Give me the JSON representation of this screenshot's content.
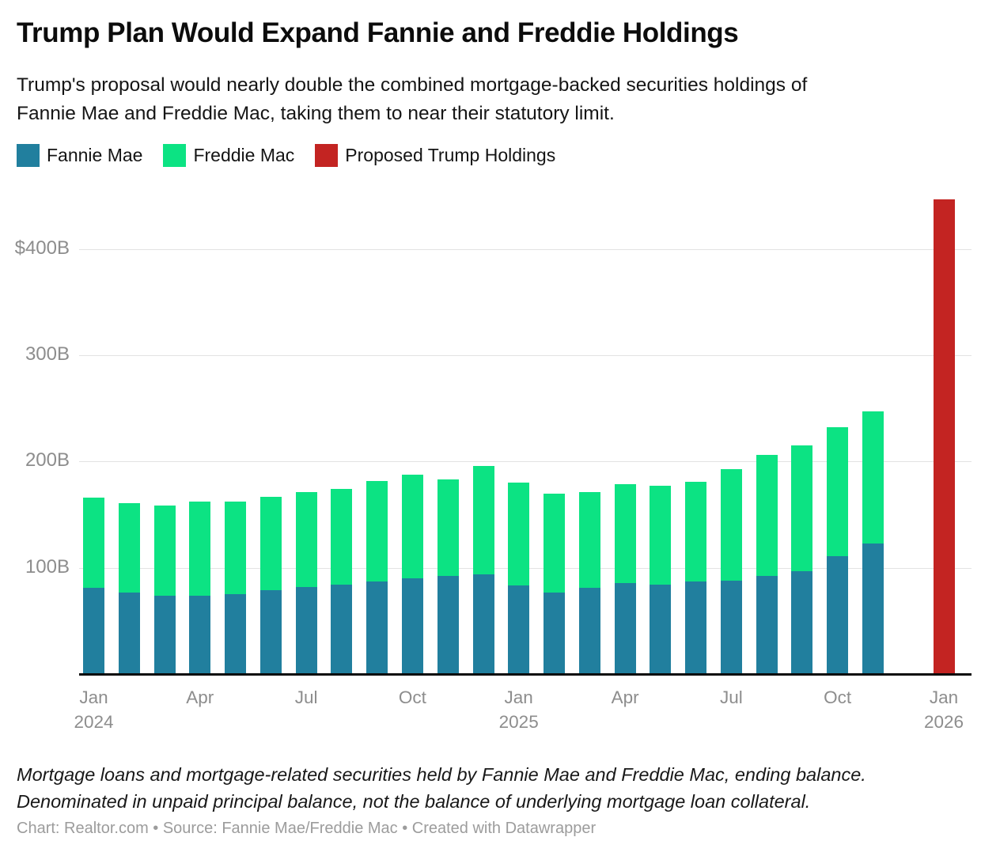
{
  "header": {
    "title": "Trump Plan Would Expand Fannie and Freddie Holdings",
    "subtitle_line1": "Trump's proposal would nearly double the combined mortgage-backed securities holdings of",
    "subtitle_line2": "Fannie Mae and Freddie Mac, taking them to near their statutory limit."
  },
  "legend": [
    {
      "label": "Fannie Mae",
      "color": "#217f9e"
    },
    {
      "label": "Freddie Mac",
      "color": "#0ce383"
    },
    {
      "label": "Proposed Trump Holdings",
      "color": "#c32422"
    }
  ],
  "chart_data": {
    "type": "bar",
    "stacked": true,
    "unit": "billions of USD",
    "title": "Trump Plan Would Expand Fannie and Freddie Holdings",
    "ylim": [
      0,
      455
    ],
    "grid": "horizontal",
    "legend_position": "top",
    "categories": [
      "Jan 2024",
      "Feb 2024",
      "Mar 2024",
      "Apr 2024",
      "May 2024",
      "Jun 2024",
      "Jul 2024",
      "Aug 2024",
      "Sep 2024",
      "Oct 2024",
      "Nov 2024",
      "Dec 2024",
      "Jan 2025",
      "Feb 2025",
      "Mar 2025",
      "Apr 2025",
      "May 2025",
      "Jun 2025",
      "Jul 2025",
      "Aug 2025",
      "Sep 2025",
      "Oct 2025",
      "Nov 2025"
    ],
    "series": [
      {
        "name": "Fannie Mae",
        "values": [
          81.5,
          76.5,
          74,
          74,
          75,
          79,
          82,
          84,
          87,
          90,
          92,
          94,
          83.5,
          77,
          81,
          86,
          84,
          87,
          88,
          92,
          97,
          111,
          123
        ]
      },
      {
        "name": "Freddie Mac",
        "values": [
          84.5,
          84.5,
          85,
          88.5,
          87,
          88,
          89,
          90,
          95,
          98,
          91.5,
          102,
          96.5,
          93,
          90,
          93,
          93,
          94,
          105,
          114,
          118,
          121,
          124
        ]
      }
    ],
    "proposed_bar": {
      "name": "Proposed Trump Holdings",
      "category": "Jan 2026",
      "month_index": 24,
      "value": 447
    },
    "y_ticks": [
      {
        "value": 400,
        "label": "$400B"
      },
      {
        "value": 300,
        "label": "300B"
      },
      {
        "value": 200,
        "label": "200B"
      },
      {
        "value": 100,
        "label": "100B"
      }
    ],
    "x_ticks": [
      {
        "index": 0,
        "label": "Jan",
        "year": "2024"
      },
      {
        "index": 3,
        "label": "Apr",
        "year": ""
      },
      {
        "index": 6,
        "label": "Jul",
        "year": ""
      },
      {
        "index": 9,
        "label": "Oct",
        "year": ""
      },
      {
        "index": 12,
        "label": "Jan",
        "year": "2025"
      },
      {
        "index": 15,
        "label": "Apr",
        "year": ""
      },
      {
        "index": 18,
        "label": "Jul",
        "year": ""
      },
      {
        "index": 21,
        "label": "Oct",
        "year": ""
      },
      {
        "index": 24,
        "label": "Jan",
        "year": "2026"
      }
    ]
  },
  "footer": {
    "note_line1": "Mortgage loans and mortgage-related securities held by Fannie Mae and Freddie Mac, ending balance.",
    "note_line2": "Denominated in unpaid principal balance, not the balance of underlying mortgage loan collateral.",
    "credit": "Chart: Realtor.com • Source: Fannie Mae/Freddie Mac • Created with Datawrapper"
  }
}
